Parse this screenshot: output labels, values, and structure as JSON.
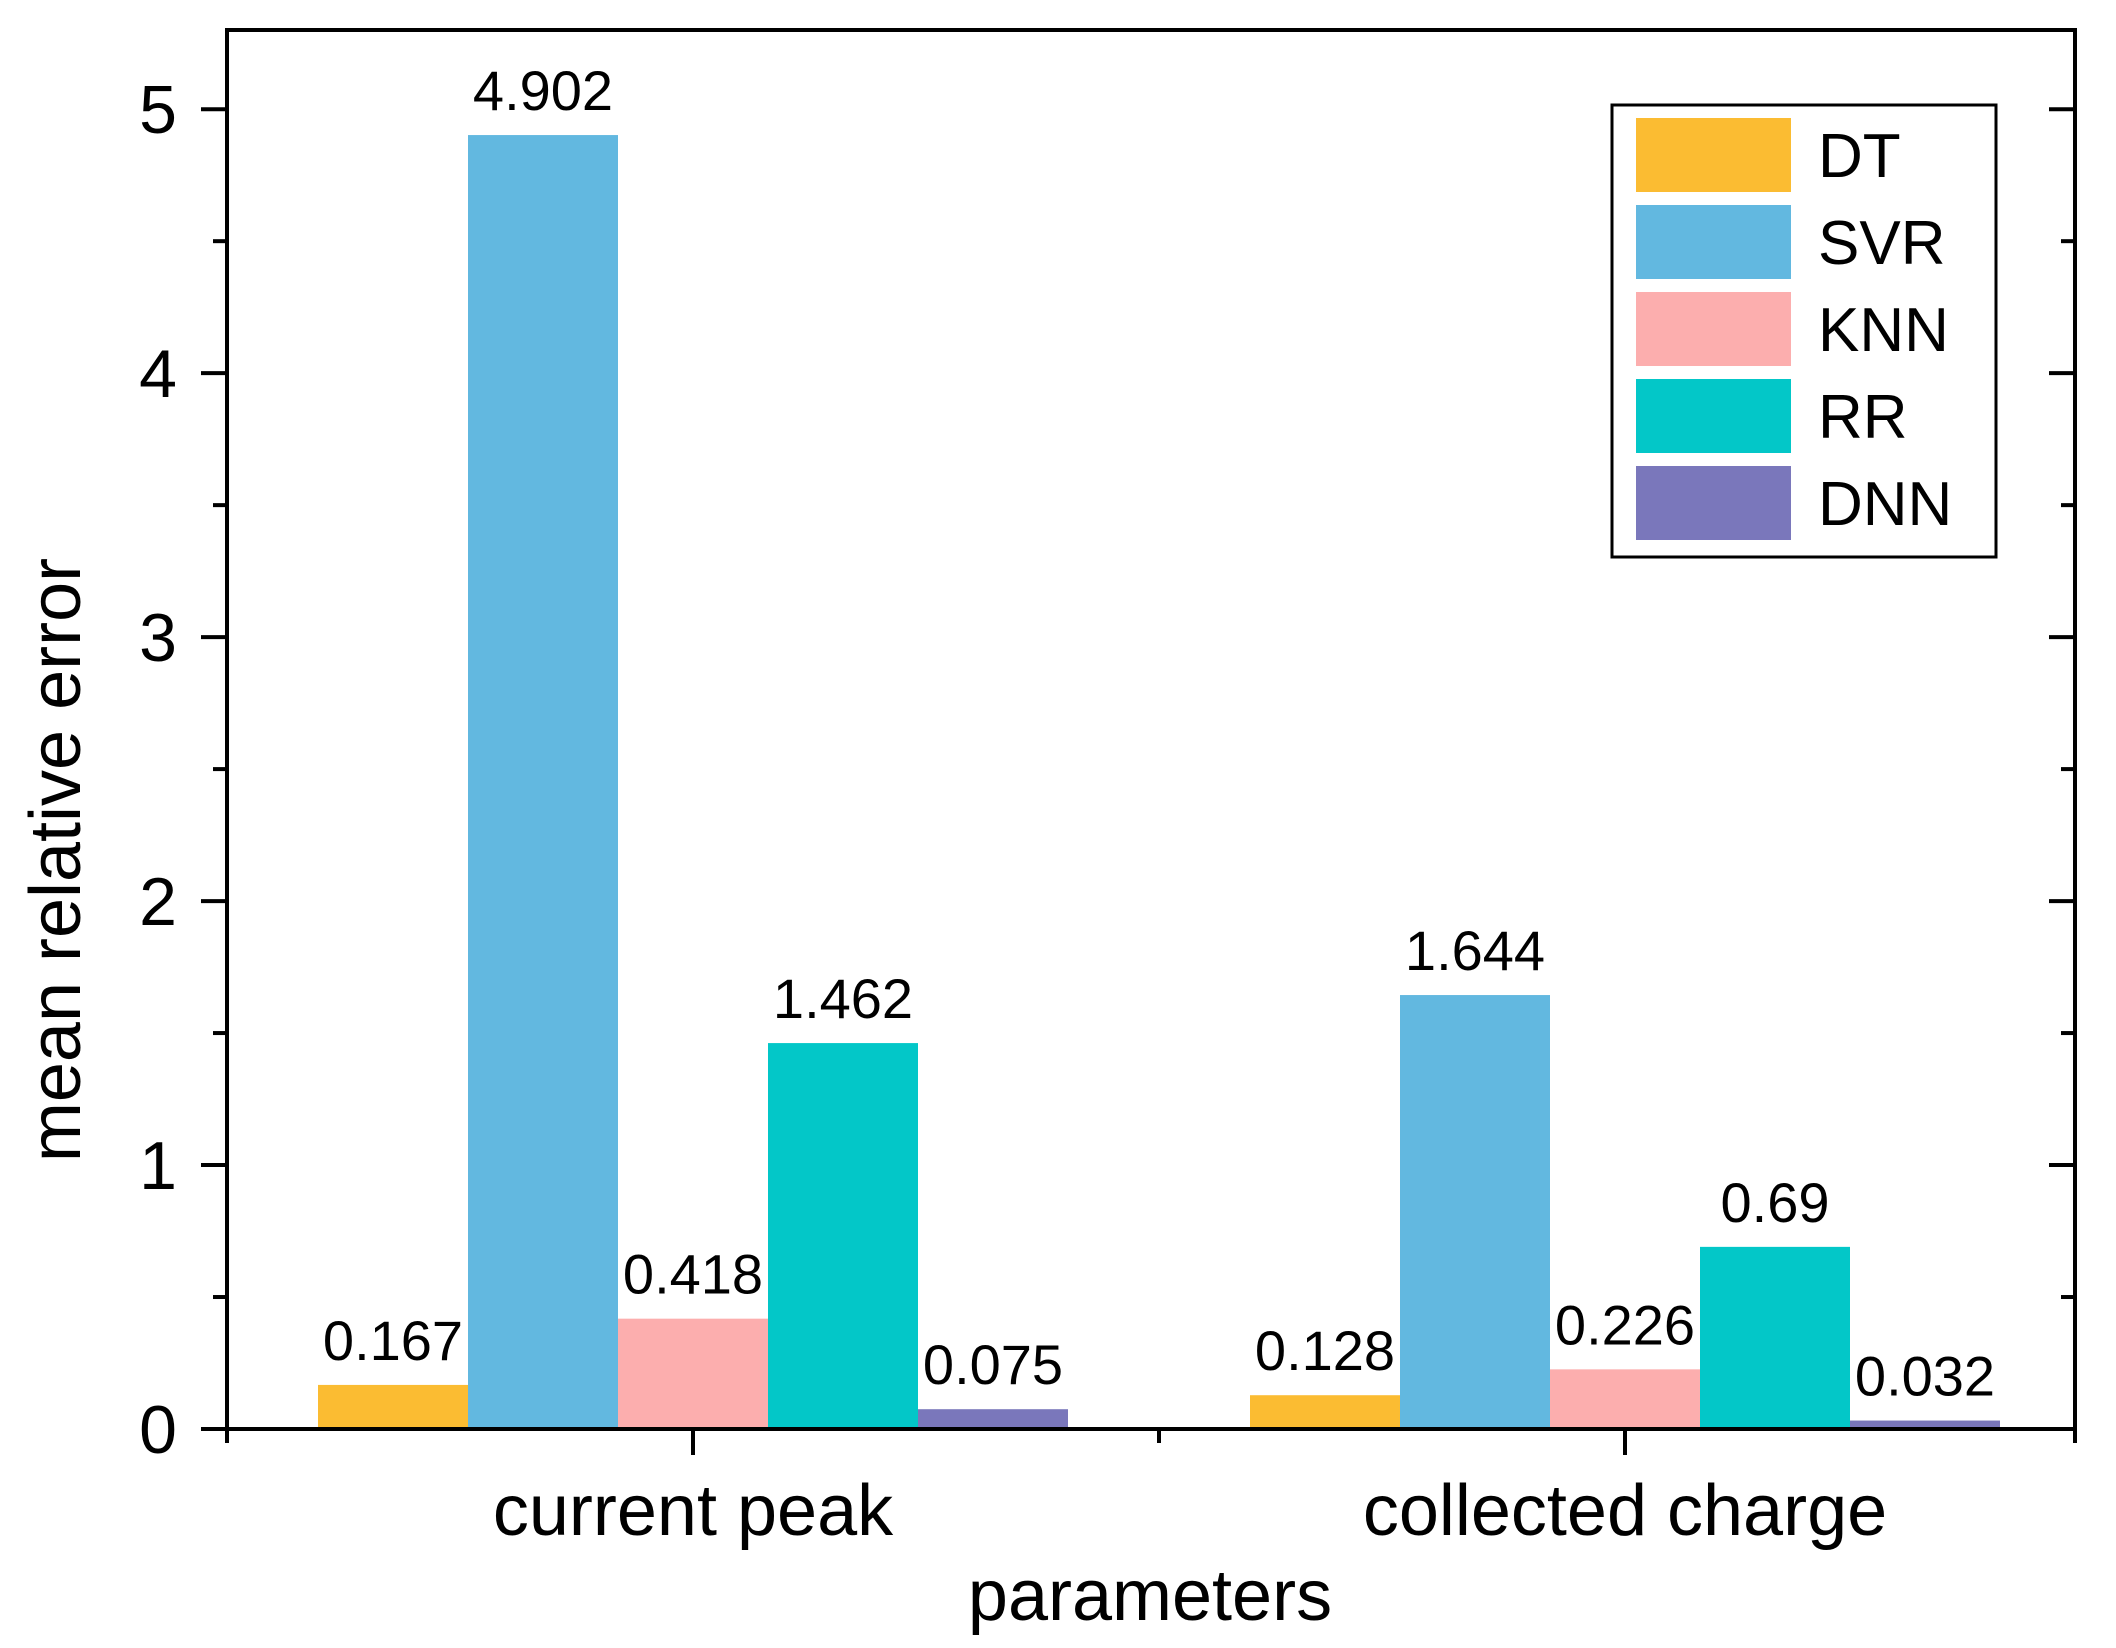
{
  "chart_data": {
    "type": "bar",
    "title": "",
    "xlabel": "parameters",
    "ylabel": "mean relative error",
    "categories": [
      "current peak",
      "collected charge"
    ],
    "series": [
      {
        "name": "DT",
        "color": "#fbbc32",
        "values": [
          0.167,
          0.128
        ],
        "labels": [
          "0.167",
          "0.128"
        ]
      },
      {
        "name": "SVR",
        "color": "#62b8e0",
        "values": [
          4.902,
          1.644
        ],
        "labels": [
          "4.902",
          "1.644"
        ]
      },
      {
        "name": "KNN",
        "color": "#fcaeae",
        "values": [
          0.418,
          0.226
        ],
        "labels": [
          "0.418",
          "0.226"
        ]
      },
      {
        "name": "RR",
        "color": "#03c7c8",
        "values": [
          1.462,
          0.69
        ],
        "labels": [
          "1.462",
          "0.69"
        ]
      },
      {
        "name": "DNN",
        "color": "#7a77bb",
        "values": [
          0.075,
          0.032
        ],
        "labels": [
          "0.075",
          "0.032"
        ]
      }
    ],
    "ylim": [
      0,
      5.3
    ],
    "yticks": [
      0,
      1,
      2,
      3,
      4,
      5
    ],
    "yticklabels": [
      "0",
      "1",
      "2",
      "3",
      "4",
      "5"
    ],
    "grid": false,
    "legend_position": "top-right"
  }
}
